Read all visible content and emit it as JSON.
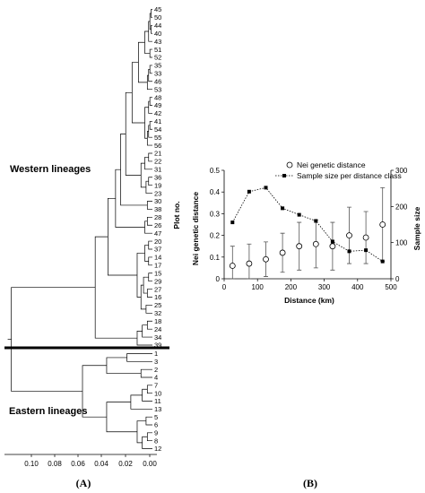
{
  "chart_data": [
    {
      "panel": "(A)",
      "type": "dendrogram",
      "ylabel": "Plot no.",
      "x_ticks": [
        "0.10",
        "0.08",
        "0.06",
        "0.04",
        "0.02",
        "0.00"
      ],
      "xlim": [
        0.11,
        0.0
      ],
      "groups": [
        {
          "label": "Western lineages"
        },
        {
          "label": "Eastern lineages"
        }
      ],
      "leaves": [
        "45",
        "50",
        "44",
        "40",
        "43",
        "51",
        "52",
        "35",
        "33",
        "46",
        "53",
        "48",
        "49",
        "42",
        "41",
        "54",
        "55",
        "56",
        "21",
        "22",
        "31",
        "36",
        "19",
        "23",
        "30",
        "38",
        "28",
        "26",
        "47",
        "20",
        "37",
        "14",
        "17",
        "15",
        "29",
        "27",
        "16",
        "25",
        "32",
        "18",
        "24",
        "34",
        "39",
        "1",
        "3",
        "2",
        "4",
        "7",
        "10",
        "11",
        "13",
        "5",
        "6",
        "9",
        "8",
        "12"
      ],
      "merges": [
        {
          "a": 0,
          "b": 1,
          "h": 0.001
        },
        {
          "a": 2,
          "b": 3,
          "h": 0.001
        },
        {
          "a": 56,
          "b": 57,
          "h": 0.002
        },
        {
          "a": 58,
          "b": 4,
          "h": 0.003
        },
        {
          "a": 5,
          "b": 6,
          "h": 0.002
        },
        {
          "a": 59,
          "b": 60,
          "h": 0.006
        },
        {
          "a": 7,
          "b": 8,
          "h": 0.002
        },
        {
          "a": 62,
          "b": 9,
          "h": 0.003
        },
        {
          "a": 63,
          "b": 10,
          "h": 0.004
        },
        {
          "a": 61,
          "b": 64,
          "h": 0.011
        },
        {
          "a": 11,
          "b": 12,
          "h": 0.002
        },
        {
          "a": 66,
          "b": 13,
          "h": 0.003
        },
        {
          "a": 14,
          "b": 15,
          "h": 0.002
        },
        {
          "a": 68,
          "b": 16,
          "h": 0.003
        },
        {
          "a": 69,
          "b": 17,
          "h": 0.004
        },
        {
          "a": 67,
          "b": 70,
          "h": 0.006
        },
        {
          "a": 65,
          "b": 71,
          "h": 0.016
        },
        {
          "a": 18,
          "b": 19,
          "h": 0.003
        },
        {
          "a": 73,
          "b": 20,
          "h": 0.006
        },
        {
          "a": 21,
          "b": 22,
          "h": 0.003
        },
        {
          "a": 75,
          "b": 23,
          "h": 0.005
        },
        {
          "a": 74,
          "b": 76,
          "h": 0.009
        },
        {
          "a": 72,
          "b": 77,
          "h": 0.021
        },
        {
          "a": 24,
          "b": 25,
          "h": 0.004
        },
        {
          "a": 78,
          "b": 79,
          "h": 0.025
        },
        {
          "a": 26,
          "b": 27,
          "h": 0.004
        },
        {
          "a": 81,
          "b": 28,
          "h": 0.006
        },
        {
          "a": 80,
          "b": 82,
          "h": 0.029
        },
        {
          "a": 29,
          "b": 30,
          "h": 0.003
        },
        {
          "a": 31,
          "b": 32,
          "h": 0.003
        },
        {
          "a": 84,
          "b": 85,
          "h": 0.006
        },
        {
          "a": 33,
          "b": 34,
          "h": 0.003
        },
        {
          "a": 35,
          "b": 36,
          "h": 0.004
        },
        {
          "a": 87,
          "b": 88,
          "h": 0.007
        },
        {
          "a": 37,
          "b": 38,
          "h": 0.005
        },
        {
          "a": 89,
          "b": 90,
          "h": 0.009
        },
        {
          "a": 86,
          "b": 91,
          "h": 0.012
        },
        {
          "a": 83,
          "b": 92,
          "h": 0.035
        },
        {
          "a": 39,
          "b": 40,
          "h": 0.004
        },
        {
          "a": 94,
          "b": 41,
          "h": 0.008
        },
        {
          "a": 95,
          "b": 42,
          "h": 0.012
        },
        {
          "a": 93,
          "b": 96,
          "h": 0.045
        },
        {
          "a": 43,
          "b": 44,
          "h": 0.02
        },
        {
          "a": 45,
          "b": 46,
          "h": 0.009
        },
        {
          "a": 98,
          "b": 99,
          "h": 0.036
        },
        {
          "a": 47,
          "b": 48,
          "h": 0.004
        },
        {
          "a": 101,
          "b": 49,
          "h": 0.008
        },
        {
          "a": 102,
          "b": 50,
          "h": 0.017
        },
        {
          "a": 51,
          "b": 52,
          "h": 0.005
        },
        {
          "a": 53,
          "b": 54,
          "h": 0.004
        },
        {
          "a": 105,
          "b": 55,
          "h": 0.008
        },
        {
          "a": 104,
          "b": 106,
          "h": 0.012
        },
        {
          "a": 103,
          "b": 107,
          "h": 0.036
        },
        {
          "a": 100,
          "b": 108,
          "h": 0.055
        },
        {
          "a": 97,
          "b": 109,
          "h": 0.111
        }
      ]
    },
    {
      "panel": "(B)",
      "type": "scatter",
      "xlabel": "Distance (km)",
      "ylabel": "Nei genetic distance",
      "y2label": "Sample size",
      "xlim": [
        0,
        500
      ],
      "ylim": [
        0,
        0.5
      ],
      "y2lim": [
        0,
        300
      ],
      "x_ticks": [
        0,
        100,
        200,
        300,
        400,
        500
      ],
      "y_ticks": [
        "0",
        "0.1",
        "0.2",
        "0.3",
        "0.4",
        "0.5"
      ],
      "y2_ticks": [
        "0",
        "100",
        "200",
        "300"
      ],
      "legend_position": "top-right",
      "series": [
        {
          "name": "Nei genetic distance",
          "marker": "open-circle",
          "axis": "left",
          "x": [
            25,
            75,
            125,
            175,
            225,
            275,
            325,
            375,
            425,
            475
          ],
          "y": [
            0.06,
            0.07,
            0.09,
            0.12,
            0.15,
            0.16,
            0.15,
            0.2,
            0.19,
            0.25
          ],
          "error": [
            0.09,
            0.09,
            0.08,
            0.09,
            0.11,
            0.11,
            0.11,
            0.13,
            0.12,
            0.17
          ]
        },
        {
          "name": "Sample size per distance class",
          "marker": "filled-square",
          "line": "dotted",
          "axis": "right",
          "x": [
            25,
            75,
            125,
            175,
            225,
            275,
            325,
            375,
            425,
            475
          ],
          "y": [
            156,
            241,
            252,
            195,
            177,
            160,
            103,
            76,
            79,
            48
          ]
        }
      ]
    }
  ],
  "labels": {
    "panel_a": "(A)",
    "panel_b": "(B)"
  }
}
